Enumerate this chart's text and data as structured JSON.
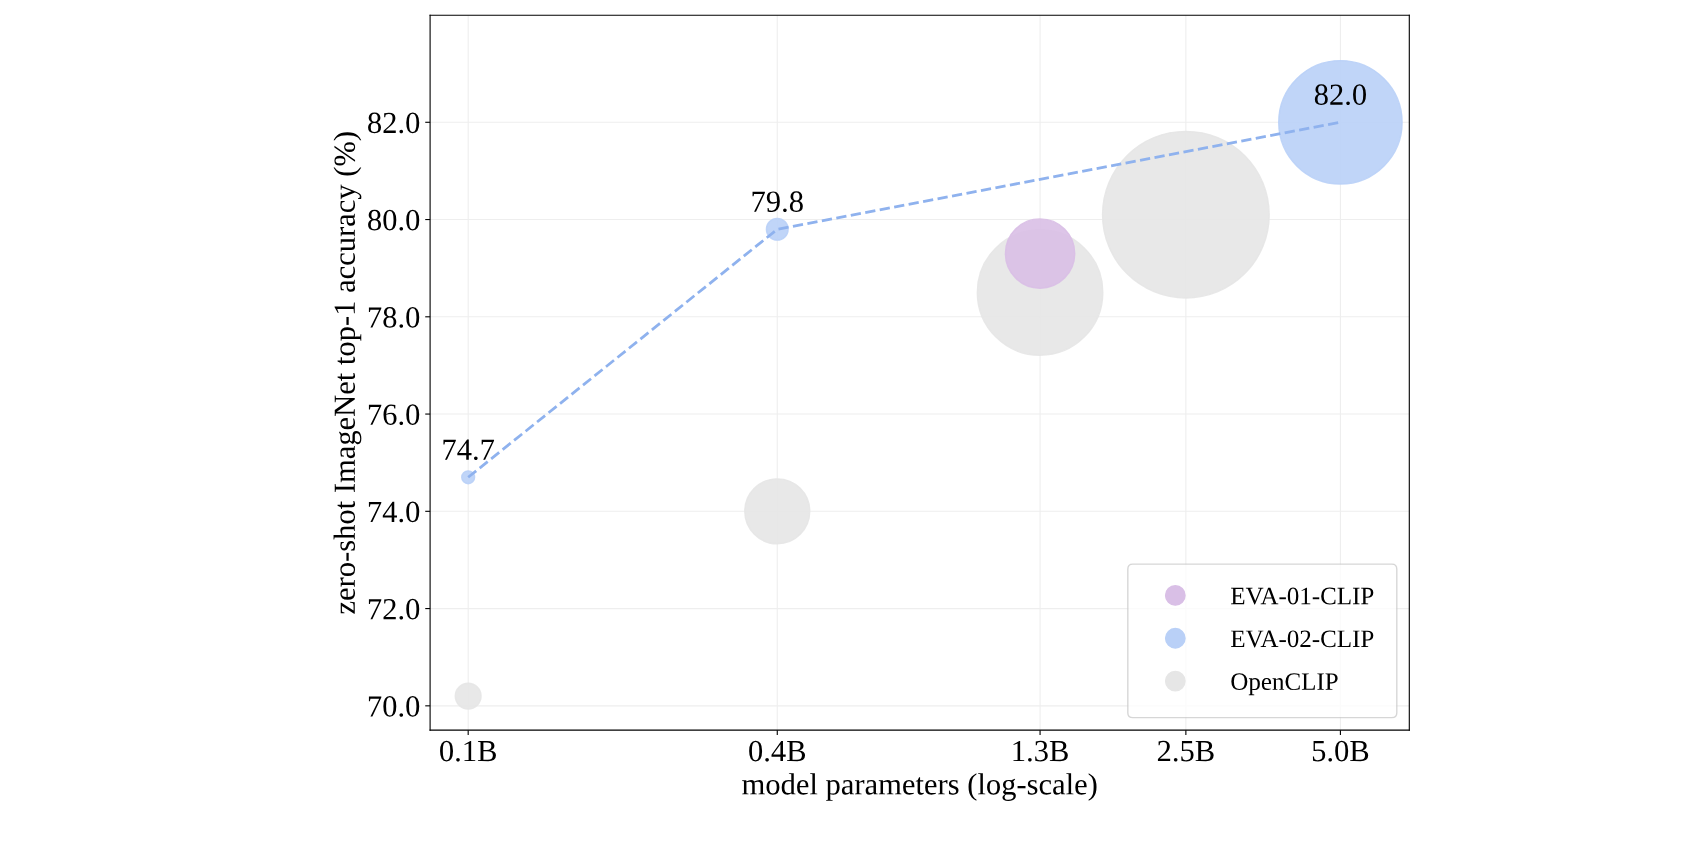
{
  "chart_data": {
    "type": "bubble",
    "xlabel": "model parameters (log-scale)",
    "ylabel": "zero-shot ImageNet top-1 accuracy (%)",
    "log": "x",
    "xlim": [
      0.0843,
      6.81
    ],
    "ylim": [
      69.5,
      84.2
    ],
    "xticks": [
      {
        "value": 0.1,
        "label": "0.1B"
      },
      {
        "value": 0.4,
        "label": "0.4B"
      },
      {
        "value": 1.3,
        "label": "1.3B"
      },
      {
        "value": 2.5,
        "label": "2.5B"
      },
      {
        "value": 5.0,
        "label": "5.0B"
      }
    ],
    "yticks": [
      {
        "value": 70,
        "label": "70.0"
      },
      {
        "value": 72,
        "label": "72.0"
      },
      {
        "value": 74,
        "label": "74.0"
      },
      {
        "value": 76,
        "label": "76.0"
      },
      {
        "value": 78,
        "label": "78.0"
      },
      {
        "value": 80,
        "label": "80.0"
      },
      {
        "value": 82,
        "label": "82.0"
      }
    ],
    "grid": true,
    "legend": "bottom right",
    "marker": "circle",
    "series": [
      {
        "name": "EVA-01-CLIP",
        "color": "#d9bfe6",
        "x": [
          1.3
        ],
        "values": [
          79.3
        ],
        "sizes": [
          0.173
        ]
      },
      {
        "name": "EVA-02-CLIP",
        "color": "#b9d0f7",
        "x": [
          0.1,
          0.4,
          5.0
        ],
        "values": [
          74.7,
          79.8,
          82.0
        ],
        "sizes": [
          0.006,
          0.017,
          0.548
        ],
        "value_labels": [
          "74.7",
          "79.8",
          "82.0"
        ]
      },
      {
        "name": "OpenCLIP",
        "color": "#e6e6e6",
        "x": [
          0.1,
          0.4,
          1.3,
          2.5
        ],
        "values": [
          70.2,
          74.0,
          78.5,
          80.1
        ],
        "sizes": [
          0.024,
          0.152,
          0.567,
          1.0
        ]
      },
      {
        "type": "line",
        "color": "#8fb2ee",
        "line_style": "dashed",
        "marker": "none",
        "x": [
          0.1,
          0.4,
          5.0
        ],
        "values": [
          74.7,
          79.8,
          82.0
        ]
      }
    ]
  }
}
